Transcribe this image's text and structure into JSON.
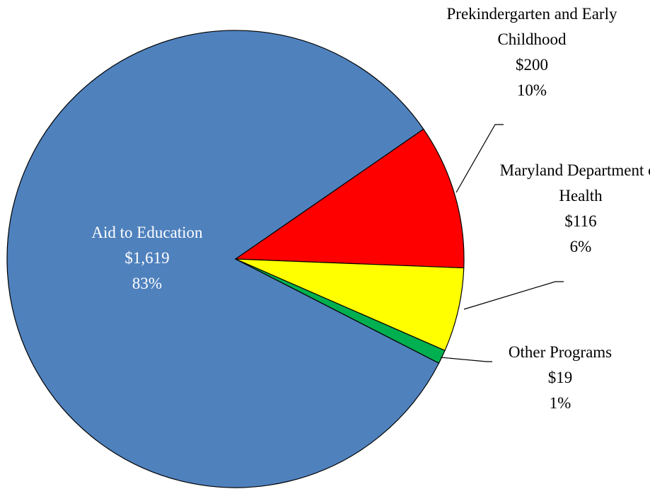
{
  "chart_data": {
    "type": "pie",
    "categories": [
      "Aid to Education",
      "Prekindergarten and Early Childhood",
      "Maryland Department of Health",
      "Other Programs"
    ],
    "values": [
      1619,
      200,
      116,
      19
    ],
    "value_labels": [
      "$1,619",
      "$200",
      "$116",
      "$19"
    ],
    "percent_labels": [
      "83%",
      "10%",
      "6%",
      "1%"
    ],
    "colors": [
      "#4f81bd",
      "#ff0000",
      "#ffff00",
      "#00b050"
    ]
  }
}
